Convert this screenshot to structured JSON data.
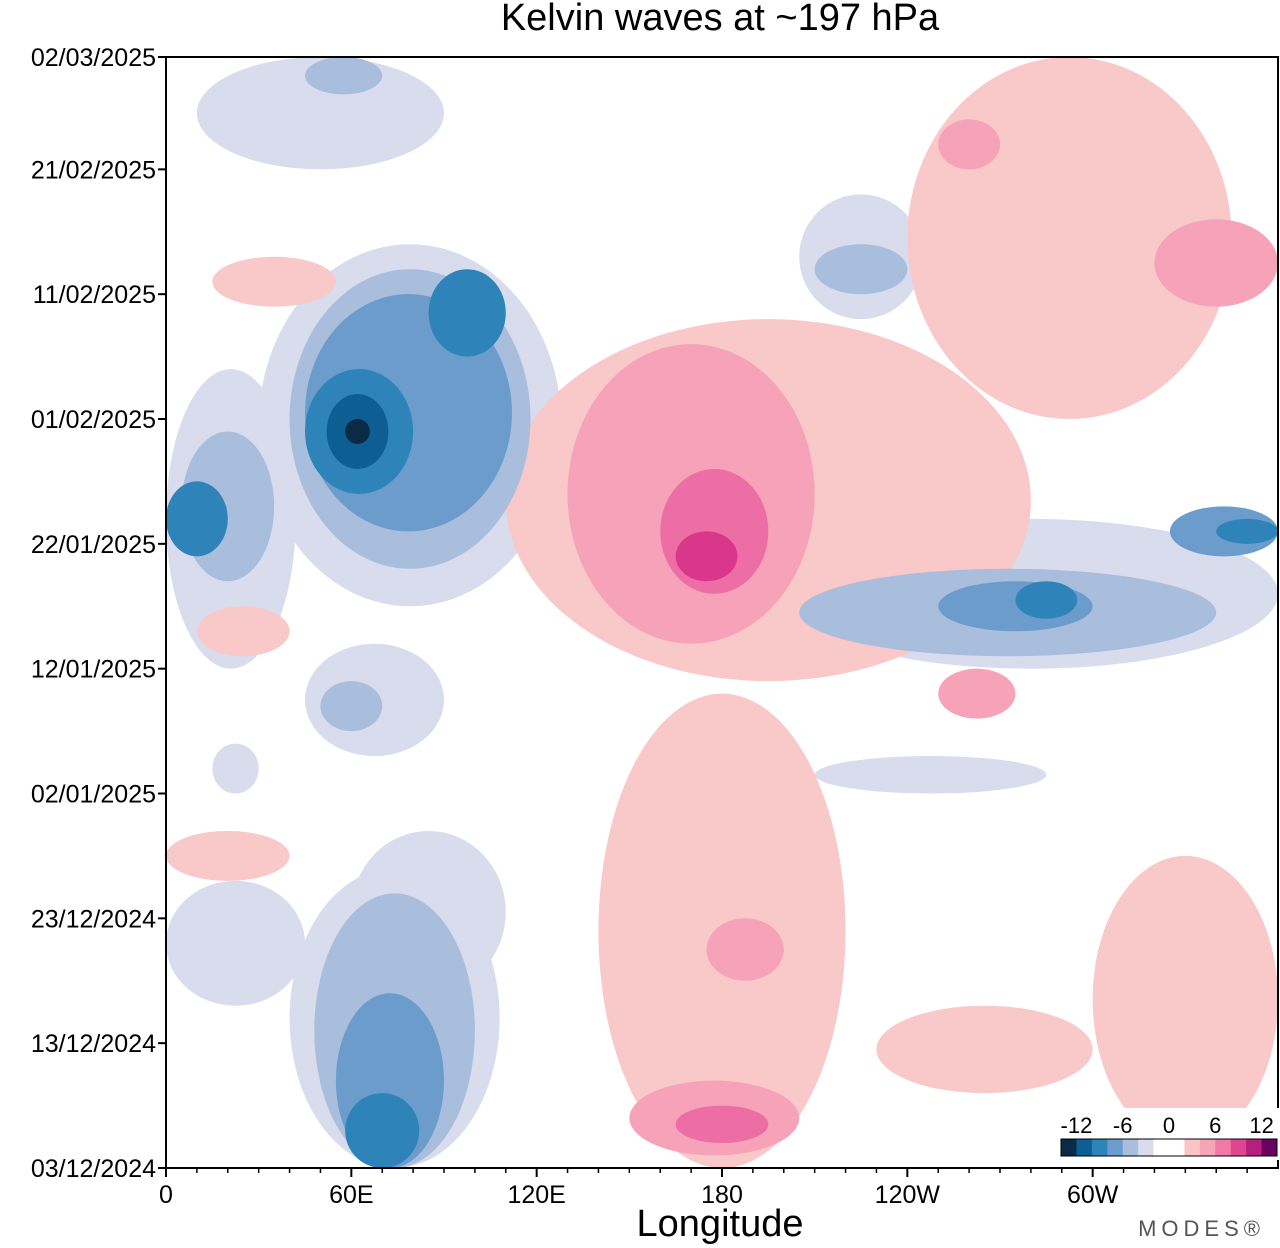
{
  "chart_data": {
    "type": "heatmap",
    "title": "Kelvin waves at ~197 hPa",
    "xlabel": "Longitude",
    "ylabel": "",
    "x_domain_deg_east": [
      0,
      360
    ],
    "x_ticks": [
      {
        "lon": 0,
        "label": "0"
      },
      {
        "lon": 60,
        "label": "60E"
      },
      {
        "lon": 120,
        "label": "120E"
      },
      {
        "lon": 180,
        "label": "180"
      },
      {
        "lon": 240,
        "label": "120W"
      },
      {
        "lon": 300,
        "label": "60W"
      }
    ],
    "y_ticks": [
      {
        "date": "2025-03-02",
        "label": "02/03/2025"
      },
      {
        "date": "2025-02-21",
        "label": "21/02/2025"
      },
      {
        "date": "2025-02-11",
        "label": "11/02/2025"
      },
      {
        "date": "2025-02-01",
        "label": "01/02/2025"
      },
      {
        "date": "2025-01-22",
        "label": "22/01/2025"
      },
      {
        "date": "2025-01-12",
        "label": "12/01/2025"
      },
      {
        "date": "2025-01-02",
        "label": "02/01/2025"
      },
      {
        "date": "2024-12-23",
        "label": "23/12/2024"
      },
      {
        "date": "2024-12-13",
        "label": "13/12/2024"
      },
      {
        "date": "2024-12-03",
        "label": "03/12/2024"
      }
    ],
    "y_range": [
      "2024-12-03",
      "2025-03-02"
    ],
    "colorbar": {
      "labels": [
        {
          "value": -12,
          "text": "-12"
        },
        {
          "value": -6,
          "text": "-6"
        },
        {
          "value": 0,
          "text": "0"
        },
        {
          "value": 6,
          "text": "6"
        },
        {
          "value": 12,
          "text": "12"
        }
      ],
      "colors": [
        "#0a2a45",
        "#0d5f93",
        "#2e83b8",
        "#6c9ccc",
        "#a9bddd",
        "#d9dcec",
        "#ffffff",
        "#ffffff",
        "#f9c4c4",
        "#f6a4b8",
        "#f07aa6",
        "#e0468f",
        "#b51f7f",
        "#6a0060"
      ]
    },
    "colors": {
      "neg1": "#d9dcec",
      "neg2": "#a9bddd",
      "neg3": "#6c9ccc",
      "neg4": "#2e83b8",
      "neg5": "#0d5f93",
      "neg6": "#0a2a45",
      "pos1": "#f9c8c8",
      "pos2": "#f6a2b8",
      "pos3": "#ed6ea4",
      "pos4": "#d9378c"
    },
    "features": [
      {
        "sign": "neg",
        "level": 1,
        "lon": [
          0,
          42
        ],
        "date": [
          "2025-01-12",
          "2025-02-05"
        ]
      },
      {
        "sign": "neg",
        "level": 2,
        "lon": [
          5,
          35
        ],
        "date": [
          "2025-01-19",
          "2025-01-31"
        ]
      },
      {
        "sign": "neg",
        "level": 4,
        "lon": [
          0,
          20
        ],
        "date": [
          "2025-01-21",
          "2025-01-27"
        ]
      },
      {
        "sign": "neg",
        "level": 1,
        "lon": [
          30,
          128
        ],
        "date": [
          "2025-01-17",
          "2025-02-15"
        ]
      },
      {
        "sign": "neg",
        "level": 2,
        "lon": [
          40,
          118
        ],
        "date": [
          "2025-01-20",
          "2025-02-13"
        ]
      },
      {
        "sign": "neg",
        "level": 3,
        "lon": [
          45,
          112
        ],
        "date": [
          "2025-01-23",
          "2025-02-11"
        ]
      },
      {
        "sign": "neg",
        "level": 4,
        "lon": [
          45,
          80
        ],
        "date": [
          "2025-01-26",
          "2025-02-05"
        ]
      },
      {
        "sign": "neg",
        "level": 5,
        "lon": [
          52,
          72
        ],
        "date": [
          "2025-01-28",
          "2025-02-03"
        ]
      },
      {
        "sign": "neg",
        "level": 6,
        "lon": [
          58,
          66
        ],
        "date": [
          "2025-01-30",
          "2025-02-01"
        ]
      },
      {
        "sign": "neg",
        "level": 4,
        "lon": [
          85,
          110
        ],
        "date": [
          "2025-02-06",
          "2025-02-13"
        ]
      },
      {
        "sign": "neg",
        "level": 1,
        "lon": [
          45,
          90
        ],
        "date": [
          "2025-01-05",
          "2025-01-14"
        ]
      },
      {
        "sign": "neg",
        "level": 2,
        "lon": [
          50,
          70
        ],
        "date": [
          "2025-01-07",
          "2025-01-11"
        ]
      },
      {
        "sign": "neg",
        "level": 1,
        "lon": [
          15,
          30
        ],
        "date": [
          "2025-01-02",
          "2025-01-06"
        ]
      },
      {
        "sign": "neg",
        "level": 1,
        "lon": [
          10,
          90
        ],
        "date": [
          "2025-02-21",
          "2025-03-02"
        ]
      },
      {
        "sign": "neg",
        "level": 2,
        "lon": [
          45,
          70
        ],
        "date": [
          "2025-02-27",
          "2025-03-02"
        ]
      },
      {
        "sign": "neg",
        "level": 1,
        "lon": [
          60,
          110
        ],
        "date": [
          "2024-12-17",
          "2024-12-30"
        ]
      },
      {
        "sign": "neg",
        "level": 1,
        "lon": [
          40,
          108
        ],
        "date": [
          "2024-12-03",
          "2024-12-27"
        ]
      },
      {
        "sign": "neg",
        "level": 2,
        "lon": [
          48,
          100
        ],
        "date": [
          "2024-12-03",
          "2024-12-25"
        ]
      },
      {
        "sign": "neg",
        "level": 3,
        "lon": [
          55,
          90
        ],
        "date": [
          "2024-12-03",
          "2024-12-17"
        ]
      },
      {
        "sign": "neg",
        "level": 4,
        "lon": [
          58,
          82
        ],
        "date": [
          "2024-12-03",
          "2024-12-09"
        ]
      },
      {
        "sign": "neg",
        "level": 1,
        "lon": [
          0,
          45
        ],
        "date": [
          "2024-12-16",
          "2024-12-26"
        ]
      },
      {
        "sign": "neg",
        "level": 1,
        "lon": [
          200,
          360
        ],
        "date": [
          "2025-01-12",
          "2025-01-24"
        ]
      },
      {
        "sign": "neg",
        "level": 2,
        "lon": [
          205,
          340
        ],
        "date": [
          "2025-01-13",
          "2025-01-20"
        ]
      },
      {
        "sign": "neg",
        "level": 3,
        "lon": [
          250,
          300
        ],
        "date": [
          "2025-01-15",
          "2025-01-19"
        ]
      },
      {
        "sign": "neg",
        "level": 4,
        "lon": [
          275,
          295
        ],
        "date": [
          "2025-01-16",
          "2025-01-19"
        ]
      },
      {
        "sign": "neg",
        "level": 3,
        "lon": [
          325,
          360
        ],
        "date": [
          "2025-01-21",
          "2025-01-25"
        ]
      },
      {
        "sign": "neg",
        "level": 4,
        "lon": [
          340,
          360
        ],
        "date": [
          "2025-01-22",
          "2025-01-24"
        ]
      },
      {
        "sign": "neg",
        "level": 1,
        "lon": [
          205,
          245
        ],
        "date": [
          "2025-02-09",
          "2025-02-19"
        ]
      },
      {
        "sign": "neg",
        "level": 2,
        "lon": [
          210,
          240
        ],
        "date": [
          "2025-02-11",
          "2025-02-15"
        ]
      },
      {
        "sign": "neg",
        "level": 1,
        "lon": [
          210,
          285
        ],
        "date": [
          "2025-01-02",
          "2025-01-05"
        ]
      },
      {
        "sign": "pos",
        "level": 1,
        "lon": [
          110,
          280
        ],
        "date": [
          "2025-01-11",
          "2025-02-09"
        ]
      },
      {
        "sign": "pos",
        "level": 2,
        "lon": [
          130,
          210
        ],
        "date": [
          "2025-01-14",
          "2025-02-07"
        ]
      },
      {
        "sign": "pos",
        "level": 3,
        "lon": [
          160,
          195
        ],
        "date": [
          "2025-01-18",
          "2025-01-28"
        ]
      },
      {
        "sign": "pos",
        "level": 4,
        "lon": [
          165,
          185
        ],
        "date": [
          "2025-01-19",
          "2025-01-23"
        ]
      },
      {
        "sign": "pos",
        "level": 1,
        "lon": [
          140,
          220
        ],
        "date": [
          "2024-12-03",
          "2025-01-10"
        ]
      },
      {
        "sign": "pos",
        "level": 2,
        "lon": [
          150,
          205
        ],
        "date": [
          "2024-12-04",
          "2024-12-10"
        ]
      },
      {
        "sign": "pos",
        "level": 3,
        "lon": [
          165,
          195
        ],
        "date": [
          "2024-12-05",
          "2024-12-08"
        ]
      },
      {
        "sign": "pos",
        "level": 2,
        "lon": [
          175,
          200
        ],
        "date": [
          "2024-12-18",
          "2024-12-23"
        ]
      },
      {
        "sign": "pos",
        "level": 1,
        "lon": [
          240,
          345
        ],
        "date": [
          "2025-02-01",
          "2025-03-02"
        ]
      },
      {
        "sign": "pos",
        "level": 2,
        "lon": [
          320,
          360
        ],
        "date": [
          "2025-02-10",
          "2025-02-17"
        ]
      },
      {
        "sign": "pos",
        "level": 2,
        "lon": [
          250,
          270
        ],
        "date": [
          "2025-02-21",
          "2025-02-25"
        ]
      },
      {
        "sign": "pos",
        "level": 1,
        "lon": [
          300,
          360
        ],
        "date": [
          "2024-12-05",
          "2024-12-28"
        ]
      },
      {
        "sign": "pos",
        "level": 1,
        "lon": [
          230,
          300
        ],
        "date": [
          "2024-12-09",
          "2024-12-16"
        ]
      },
      {
        "sign": "pos",
        "level": 2,
        "lon": [
          250,
          275
        ],
        "date": [
          "2025-01-08",
          "2025-01-12"
        ]
      },
      {
        "sign": "pos",
        "level": 1,
        "lon": [
          10,
          40
        ],
        "date": [
          "2025-01-13",
          "2025-01-17"
        ]
      },
      {
        "sign": "pos",
        "level": 1,
        "lon": [
          0,
          40
        ],
        "date": [
          "2024-12-26",
          "2024-12-30"
        ]
      },
      {
        "sign": "pos",
        "level": 1,
        "lon": [
          15,
          55
        ],
        "date": [
          "2025-02-10",
          "2025-02-14"
        ]
      }
    ]
  },
  "branding": {
    "text": "MODES®"
  }
}
